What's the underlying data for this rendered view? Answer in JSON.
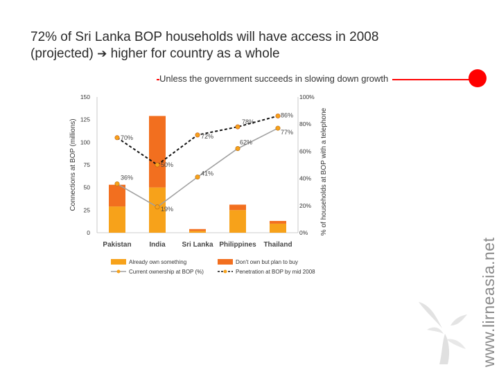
{
  "slide": {
    "title_line1": "72% of Sri Lanka BOP households will have access in 2008",
    "title_line2_before": "(projected)",
    "title_arrow": "➔",
    "title_line2_after": "higher for country as a whole",
    "subtitle": "Unless the government succeeds in slowing down growth",
    "watermark": "www.lirneasia.net",
    "accent_color": "#ff0000"
  },
  "chart_data": {
    "type": "bar",
    "categories": [
      "Pakistan",
      "India",
      "Sri Lanka",
      "Philippines",
      "Thailand"
    ],
    "ylabel": "Connections at BOP (millions)",
    "ylabel2": "% of households at BOP with a telephone",
    "ylim": [
      0,
      150
    ],
    "yticks": [
      "150",
      "125",
      "100",
      "75",
      "50",
      "25",
      "0"
    ],
    "ylim2": [
      0,
      100
    ],
    "yticks2": [
      "100%",
      "80%",
      "60%",
      "40%",
      "20%",
      "0%"
    ],
    "series": [
      {
        "name": "Already own something",
        "kind": "bar",
        "color": "#f7a21a",
        "values": [
          29,
          50,
          2,
          25,
          10
        ]
      },
      {
        "name": "Don't own but plan to buy",
        "kind": "bar",
        "color": "#f26f1f",
        "values": [
          24,
          79,
          2,
          6,
          3
        ]
      },
      {
        "name": "Current ownership at BOP (%)",
        "kind": "line",
        "color": "#a0a0a0",
        "values": [
          36,
          19,
          41,
          62,
          77
        ],
        "labels": [
          "36%",
          "19%",
          "41%",
          "62%",
          "77%"
        ]
      },
      {
        "name": "Penetration at BOP by mid 2008",
        "kind": "line",
        "color": "#111111",
        "values": [
          70,
          50,
          72,
          78,
          86
        ],
        "labels": [
          "70%",
          "50%",
          "72%",
          "78%",
          "86%"
        ]
      }
    ]
  }
}
